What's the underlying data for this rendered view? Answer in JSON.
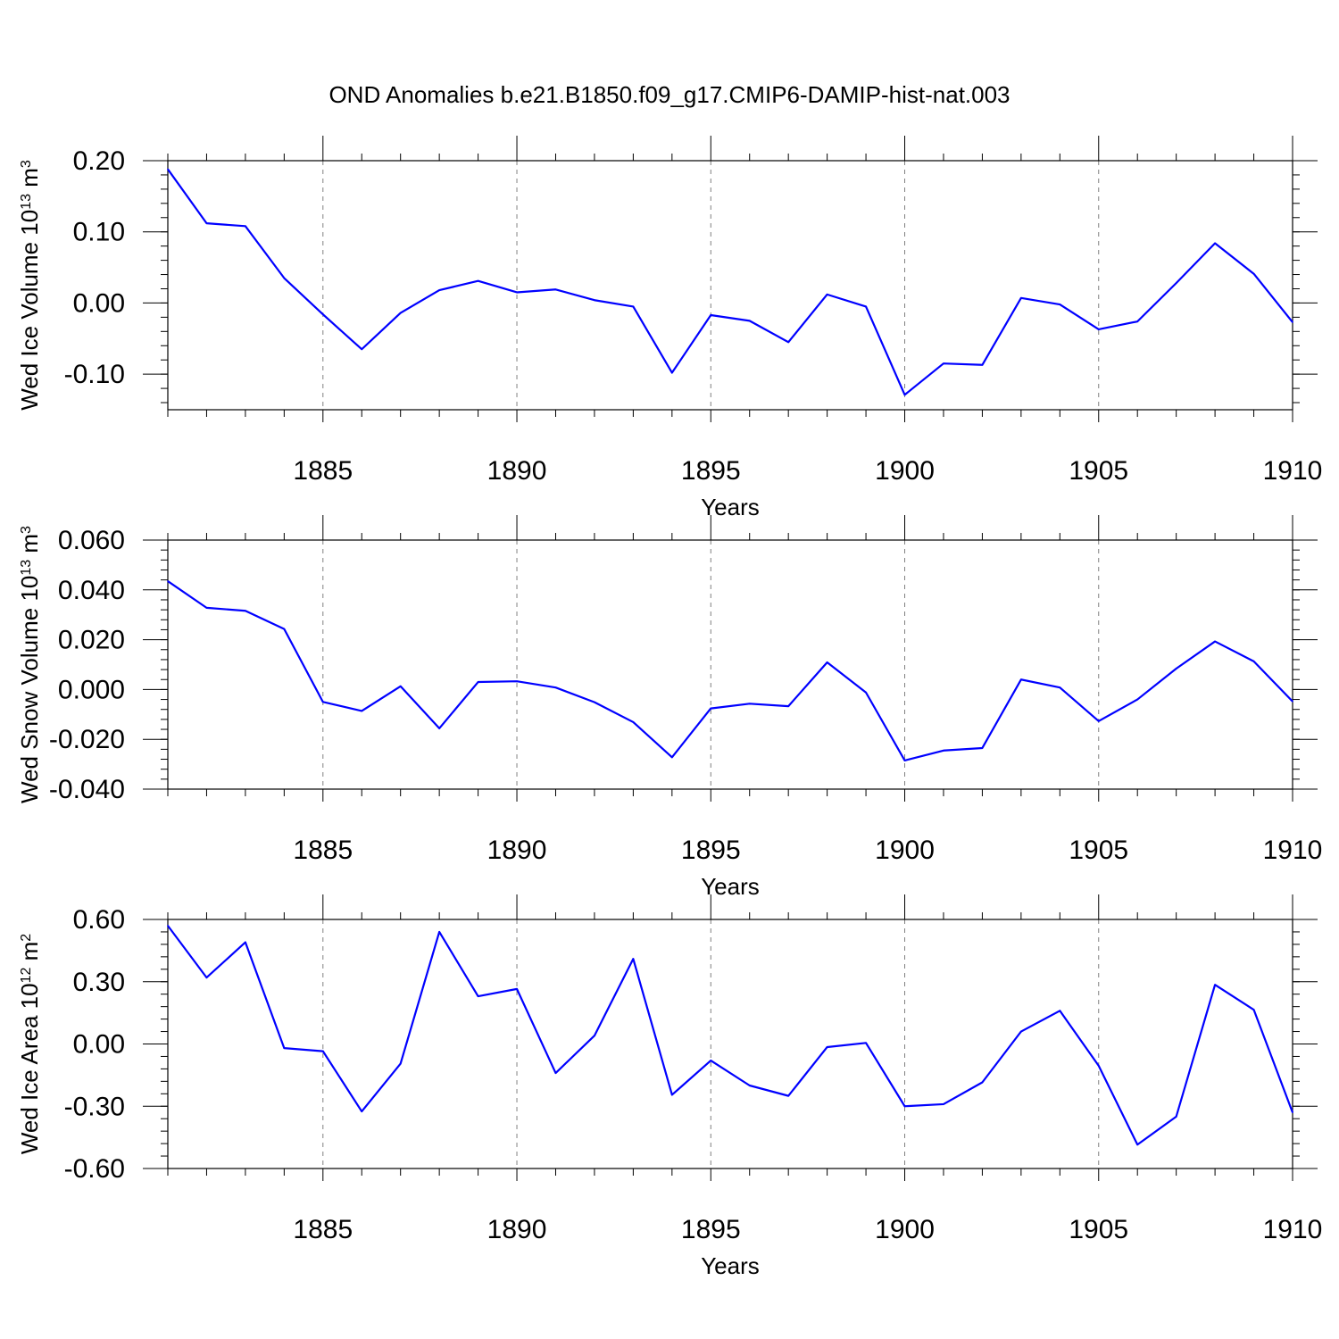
{
  "title": "OND Anomalies b.e21.B1850.f09_g17.CMIP6-DAMIP-hist-nat.003",
  "colors": {
    "series": "#0000ff",
    "axis": "#000000",
    "grid": "#808080",
    "background": "#ffffff"
  },
  "chart_data": [
    {
      "type": "line",
      "ylabel": "Wed Ice Volume 10",
      "ylabel_exp": "13",
      "ylabel_unit": " m",
      "ylabel_unit_exp": "3",
      "xlabel": "Years",
      "xlim": [
        1881,
        1910
      ],
      "ylim": [
        -0.15,
        0.2
      ],
      "yticks": [
        "0.20",
        "0.10",
        "0.00",
        "-0.10"
      ],
      "ytick_values": [
        0.2,
        0.1,
        0.0,
        -0.1
      ],
      "xticks": [
        "1885",
        "1890",
        "1895",
        "1900",
        "1905",
        "1910"
      ],
      "xtick_values": [
        1885,
        1890,
        1895,
        1900,
        1905,
        1910
      ],
      "grid": "vertical dashed at major x ticks",
      "x": [
        1881,
        1882,
        1883,
        1884,
        1885,
        1886,
        1887,
        1888,
        1889,
        1890,
        1891,
        1892,
        1893,
        1894,
        1895,
        1896,
        1897,
        1898,
        1899,
        1900,
        1901,
        1902,
        1903,
        1904,
        1905,
        1906,
        1907,
        1908,
        1909,
        1910
      ],
      "series": [
        {
          "values": [
            0.188,
            0.112,
            0.108,
            0.035,
            -0.016,
            -0.065,
            -0.014,
            0.018,
            0.031,
            0.015,
            0.019,
            0.004,
            -0.005,
            -0.098,
            -0.017,
            -0.025,
            -0.055,
            0.012,
            -0.005,
            -0.129,
            -0.085,
            -0.087,
            0.007,
            -0.002,
            -0.037,
            -0.026,
            0.028,
            0.084,
            0.041,
            -0.027
          ]
        }
      ]
    },
    {
      "type": "line",
      "ylabel": "Wed Snow Volume 10",
      "ylabel_exp": "13",
      "ylabel_unit": " m",
      "ylabel_unit_exp": "3",
      "xlabel": "Years",
      "xlim": [
        1881,
        1910
      ],
      "ylim": [
        -0.04,
        0.06
      ],
      "yticks": [
        "0.060",
        "0.040",
        "0.020",
        "0.000",
        "-0.020",
        "-0.040"
      ],
      "ytick_values": [
        0.06,
        0.04,
        0.02,
        0.0,
        -0.02,
        -0.04
      ],
      "xticks": [
        "1885",
        "1890",
        "1895",
        "1900",
        "1905",
        "1910"
      ],
      "xtick_values": [
        1885,
        1890,
        1895,
        1900,
        1905,
        1910
      ],
      "grid": "vertical dashed at major x ticks",
      "x": [
        1881,
        1882,
        1883,
        1884,
        1885,
        1886,
        1887,
        1888,
        1889,
        1890,
        1891,
        1892,
        1893,
        1894,
        1895,
        1896,
        1897,
        1898,
        1899,
        1900,
        1901,
        1902,
        1903,
        1904,
        1905,
        1906,
        1907,
        1908,
        1909,
        1910
      ],
      "series": [
        {
          "values": [
            0.0435,
            0.0328,
            0.0316,
            0.0243,
            -0.005,
            -0.0086,
            0.0013,
            -0.0156,
            0.003,
            0.0033,
            0.0008,
            -0.0051,
            -0.0131,
            -0.0272,
            -0.0076,
            -0.0057,
            -0.0067,
            0.0109,
            -0.0012,
            -0.0285,
            -0.0245,
            -0.0235,
            0.004,
            0.0008,
            -0.0127,
            -0.004,
            0.0084,
            0.0193,
            0.0113,
            -0.0048
          ]
        }
      ]
    },
    {
      "type": "line",
      "ylabel": "Wed Ice Area 10",
      "ylabel_exp": "12",
      "ylabel_unit": " m",
      "ylabel_unit_exp": "2",
      "xlabel": "Years",
      "xlim": [
        1881,
        1910
      ],
      "ylim": [
        -0.6,
        0.6
      ],
      "yticks": [
        "0.60",
        "0.30",
        "0.00",
        "-0.30",
        "-0.60"
      ],
      "ytick_values": [
        0.6,
        0.3,
        0.0,
        -0.3,
        -0.6
      ],
      "xticks": [
        "1885",
        "1890",
        "1895",
        "1900",
        "1905",
        "1910"
      ],
      "xtick_values": [
        1885,
        1890,
        1895,
        1900,
        1905,
        1910
      ],
      "grid": "vertical dashed at major x ticks",
      "x": [
        1881,
        1882,
        1883,
        1884,
        1885,
        1886,
        1887,
        1888,
        1889,
        1890,
        1891,
        1892,
        1893,
        1894,
        1895,
        1896,
        1897,
        1898,
        1899,
        1900,
        1901,
        1902,
        1903,
        1904,
        1905,
        1906,
        1907,
        1908,
        1909,
        1910
      ],
      "series": [
        {
          "values": [
            0.57,
            0.32,
            0.49,
            -0.02,
            -0.035,
            -0.325,
            -0.095,
            0.54,
            0.23,
            0.265,
            -0.14,
            0.04,
            0.41,
            -0.245,
            -0.08,
            -0.2,
            -0.25,
            -0.015,
            0.005,
            -0.3,
            -0.29,
            -0.185,
            0.06,
            0.16,
            -0.105,
            -0.485,
            -0.35,
            0.285,
            0.165,
            -0.33
          ]
        }
      ]
    }
  ]
}
